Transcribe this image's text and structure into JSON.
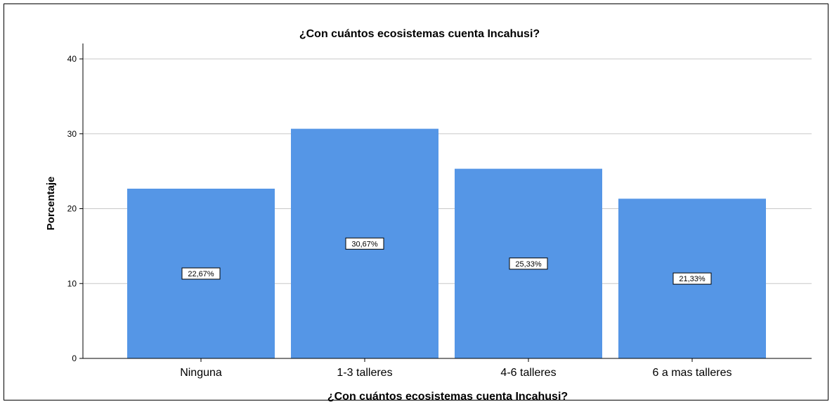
{
  "chart_data": {
    "type": "bar",
    "title": "¿Con cuántos ecosistemas cuenta Incahusi?",
    "xlabel": "¿Con cuántos ecosistemas cuenta Incahusi?",
    "ylabel": "Porcentaje",
    "categories": [
      "Ninguna",
      "1-3 talleres",
      "4-6 talleres",
      "6 a mas talleres"
    ],
    "values": [
      22.67,
      30.67,
      25.33,
      21.33
    ],
    "data_labels": [
      "22,67%",
      "30,67%",
      "25,33%",
      "21,33%"
    ],
    "ylim": [
      0,
      40
    ],
    "yticks": [
      "0",
      "10",
      "20",
      "30",
      "40"
    ],
    "grid": true,
    "bar_color": "#5596e6",
    "grid_color": "#c8c8c8"
  }
}
